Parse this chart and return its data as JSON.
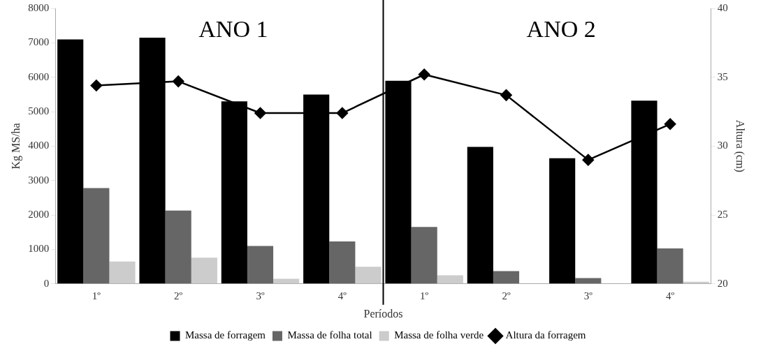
{
  "chart_data": {
    "type": "bar",
    "xlabel": "Períodos",
    "ylabel": "Kg MS/ha",
    "y2label": "Altura (cm)",
    "categories": [
      "1º",
      "2º",
      "3º",
      "4º",
      "1º",
      "2º",
      "3º",
      "4º"
    ],
    "series": [
      {
        "name": "Massa de forragem",
        "color": "#000000",
        "values": [
          7100,
          7150,
          5300,
          5500,
          5900,
          3980,
          3650,
          5320
        ]
      },
      {
        "name": "Massa de folha total",
        "color": "#666666",
        "values": [
          2780,
          2130,
          1100,
          1230,
          1650,
          370,
          170,
          1030
        ]
      },
      {
        "name": "Massa de folha verde",
        "color": "#cccccc",
        "values": [
          650,
          760,
          150,
          500,
          250,
          null,
          10,
          60
        ]
      },
      {
        "name": "Altura da forragem",
        "type": "line",
        "axis": "y2",
        "color": "#000000",
        "marker": "diamond",
        "values": [
          34.4,
          34.7,
          32.4,
          32.4,
          35.2,
          33.7,
          29.0,
          31.6
        ]
      }
    ],
    "ylim": [
      0,
      8000
    ],
    "yticks": [
      0,
      1000,
      2000,
      3000,
      4000,
      5000,
      6000,
      7000,
      8000
    ],
    "y2lim": [
      20,
      40
    ],
    "y2ticks": [
      20,
      25,
      30,
      35,
      40
    ],
    "annotations": [
      "ANO 1",
      "ANO 2"
    ],
    "grid": false,
    "legend": "bottom"
  }
}
